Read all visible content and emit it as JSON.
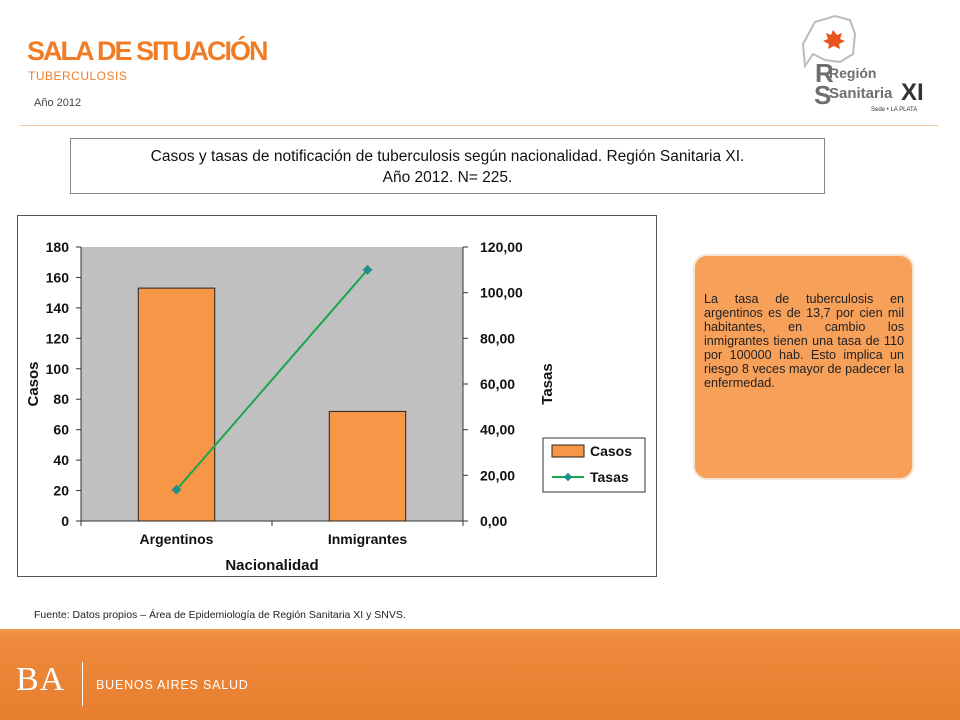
{
  "header": {
    "title": "SALA DE SITUACIÓN",
    "subtitle": "TUBERCULOSIS",
    "year": "Año 2012"
  },
  "logo": {
    "line1": "Región",
    "line2": "Sanitaria",
    "numeral": "XI",
    "tagline": "Sede • LA PLATA"
  },
  "caption": {
    "line1": "Casos y tasas de notificación de tuberculosis según nacionalidad. Región Sanitaria XI.",
    "line2": "Año 2012. N= 225."
  },
  "note": {
    "text": "La tasa de tuberculosis en argentinos es de 13,7 por cien mil habitantes, en cambio los inmigrantes tienen una tasa de 110 por 100000 hab. Esto implica un riesgo 8 veces mayor de padecer la enfermedad."
  },
  "source": "Fuente: Datos propios – Área de Epidemiología de Región Sanitaria XI y SNVS.",
  "footer": {
    "brand": "BA",
    "label": "BUENOS AIRES SALUD"
  },
  "colors": {
    "accent": "#f07d26",
    "bar": "#f79646",
    "line": "#1aa64b",
    "marker": "#1f8f8a",
    "plot_bg": "#c0c0c0"
  },
  "chart_data": {
    "type": "bar",
    "categories": [
      "Argentinos",
      "Inmigrantes"
    ],
    "series": [
      {
        "name": "Casos",
        "type": "bar",
        "axis": "left",
        "values": [
          153,
          72
        ]
      },
      {
        "name": "Tasas",
        "type": "line",
        "axis": "right",
        "values": [
          13.7,
          110
        ]
      }
    ],
    "xlabel": "Nacionalidad",
    "ylabel": "Casos",
    "y2label": "Tasas",
    "ylim": [
      0,
      180
    ],
    "y2lim": [
      0,
      120
    ],
    "yticks": [
      "0",
      "20",
      "40",
      "60",
      "80",
      "100",
      "120",
      "140",
      "160",
      "180"
    ],
    "y2ticks": [
      "0,00",
      "20,00",
      "40,00",
      "60,00",
      "80,00",
      "100,00",
      "120,00"
    ],
    "grid": false,
    "legend": "right"
  }
}
